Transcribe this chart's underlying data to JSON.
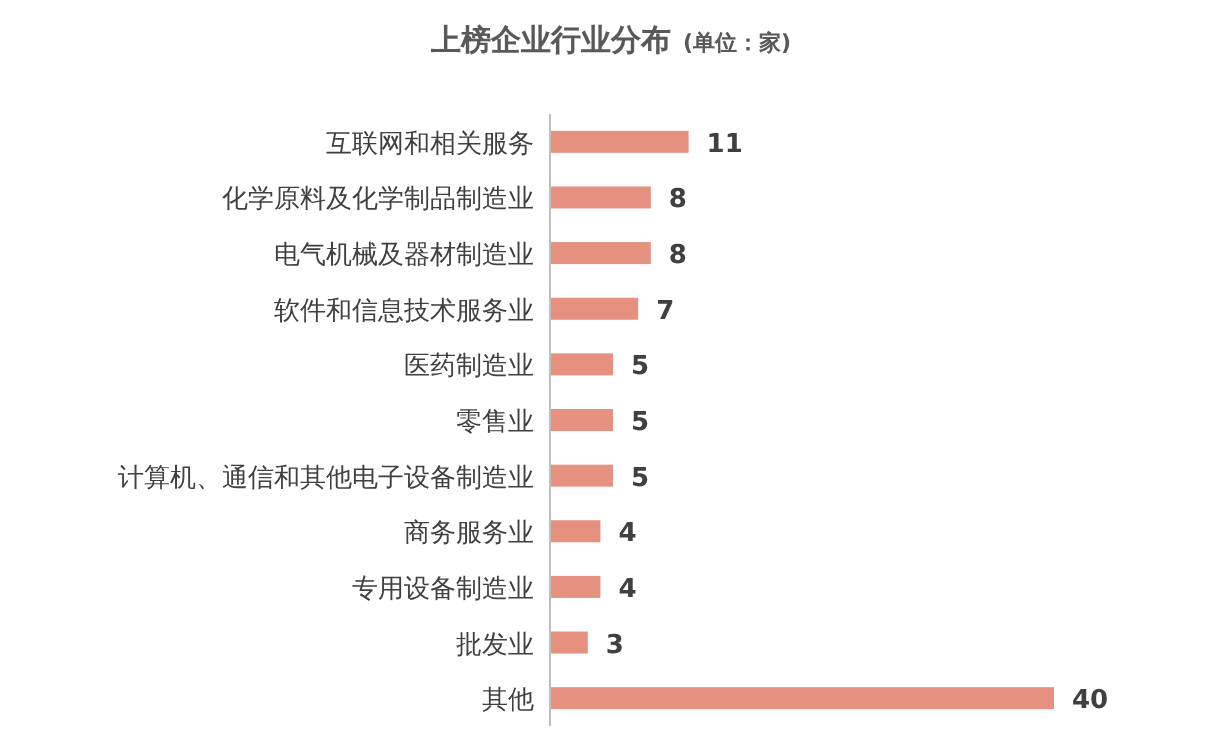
{
  "chart_data": {
    "type": "bar",
    "orientation": "horizontal",
    "title": "上榜企业行业分布",
    "subtitle": "(单位：家)",
    "categories": [
      "互联网和相关服务",
      "化学原料及化学制品制造业",
      "电气机械及器材制造业",
      "软件和信息技术服务业",
      "医药制造业",
      "零售业",
      "计算机、通信和其他电子设备制造业",
      "商务服务业",
      "专用设备制造业",
      "批发业",
      "其他"
    ],
    "values": [
      11,
      8,
      8,
      7,
      5,
      5,
      5,
      4,
      4,
      3,
      40
    ],
    "color": "#e6917f",
    "data_labels": true
  }
}
